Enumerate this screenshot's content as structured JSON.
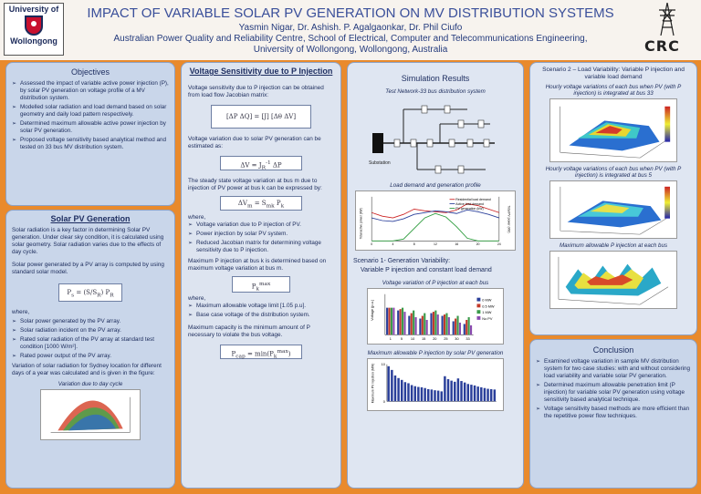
{
  "header": {
    "logo_left_top": "University of",
    "logo_left_bottom": "Wollongong",
    "title": "IMPACT OF VARIABLE SOLAR PV GENERATION ON MV DISTRIBUTION SYSTEMS",
    "authors": "Yasmin Nigar, Dr. Ashish. P. Agalgaonkar,  Dr. Phil Ciufo",
    "affiliation_1": "Australian Power Quality and Reliability Centre, School of Electrical, Computer and Telecommunications Engineering,",
    "affiliation_2": "University of Wollongong, Wollongong,  Australia",
    "logo_right": "CRC"
  },
  "objectives": {
    "title": "Objectives",
    "items": [
      "Assessed the impact of variable active power injection (P), by solar PV generation on voltage profile of a MV distribution system.",
      "Modelled solar radiation and load demand based on solar geometry and daily load pattern respectively.",
      "Determined maximum allowable active power injection by solar PV generation.",
      "Proposed voltage sensitivity based analytical method and tested on 33 bus MV distribution system."
    ]
  },
  "solar": {
    "title": "Solar PV Generation",
    "intro": "Solar radiation is a key factor in determining Solar PV generation. Under clear sky condition, it is calculated using solar geometry. Solar radiation varies due to the effects of day cycle.",
    "power_intro": "Solar power generated by a PV array is computed by using standard solar model.",
    "where": "where,",
    "defs": [
      "Solar power generated by the PV array.",
      "Solar radiation incident on the PV array.",
      "Rated solar radiation of the PV array at standard test condition [1000 W/m²].",
      "Rated power output of the PV array."
    ],
    "variation": "Variation of solar radiation for Sydney location for different days of a year was calculated and is given in the figure:",
    "figure_title": "Variation due to day cycle"
  },
  "sensitivity": {
    "title": "Voltage Sensitivity due to P Injection",
    "p1": "Voltage sensitivity due to P injection can be obtained from load flow Jacobian matrix:",
    "p2": "Voltage variation due to solar PV generation can be estimated as:",
    "p3": "The steady state voltage variation at bus m due to injection of PV power at bus k can be expressed by:",
    "where1": "where,",
    "d1": "Voltage variation due to P injection of PV.",
    "d2": "Power injection by solar PV system.",
    "d3": "Reduced Jacobian matrix for determining voltage sensitivity due to P injection.",
    "p4": "Maximum P injection at bus k is determined based on maximum voltage variation at bus m.",
    "where2": "where,",
    "d4": "Maximum allowable voltage limit [1.05 p.u].",
    "d5": "Base case voltage of the distribution system.",
    "p5": "Maximum capacity is the minimum amount of P necessary to violate the bus voltage."
  },
  "simulation": {
    "title": "Simulation Results",
    "network_title": "Test Network-33 bus distribution system",
    "substation": "Substation",
    "load_title": "Load demand and generation profile",
    "load_legend": [
      "Residential load demand",
      "Active load demand",
      "PV generation (kW)"
    ],
    "load_ylabel_left": "Total active power (kW)",
    "load_ylabel_right": "Total PV power (kW)",
    "scenario1_title": "Scenario 1- Generation Variability:",
    "scenario1_desc": "Variable P injection and constant load demand",
    "bar_title": "Voltage variation of P injection at each bus",
    "bar_legend": [
      "0 MW",
      "0.5 MW",
      "1 MW",
      "No PV"
    ],
    "bar_ylabel": "Voltage (p.u.)",
    "bar_xlabel": "Bus",
    "max_title": "Maximum allowable P injection by solar PV generation",
    "max_ylabel": "Maximum PV injection (MW)"
  },
  "scenario2": {
    "title": "Scenario 2 – Load Variability: Variable P injection and variable load demand",
    "fig1": "Hourly voltage variations of each bus when PV (with P injection) is integrated at bus 33",
    "fig2": "Hourly voltage variations of each bus when PV (with P injection) is integrated at bus 5",
    "fig3": "Maximum allowable P injection at each bus",
    "axis_bus": "Bus No.",
    "axis_hours": "Hours",
    "axis_voltage": "Voltage (p.u.)"
  },
  "conclusion": {
    "title": "Conclusion",
    "items": [
      "Examined voltage variation in sample MV distribution system for two case studies: with and without considering load variability and variable solar PV generation.",
      "Determined maximum allowable penetration limit (P injection) for variable solar PV generation using voltage sensitivity based analytical technique.",
      "Voltage sensitivity based methods are more efficient than the repetitive power flow techniques."
    ]
  },
  "chart_data": [
    {
      "type": "bar",
      "title": "Voltage variation of P injection at each bus",
      "categories": [
        "1",
        "5",
        "10",
        "15",
        "20",
        "25",
        "30",
        "33"
      ],
      "series": [
        {
          "name": "0 MW",
          "values": [
            1.0,
            0.99,
            0.97,
            0.96,
            0.98,
            0.97,
            0.95,
            0.94
          ]
        },
        {
          "name": "0.5 MW",
          "values": [
            1.0,
            0.995,
            0.98,
            0.97,
            0.985,
            0.975,
            0.96,
            0.955
          ]
        },
        {
          "name": "1 MW",
          "values": [
            1.0,
            1.0,
            0.99,
            0.98,
            0.99,
            0.98,
            0.97,
            0.965
          ]
        },
        {
          "name": "No PV",
          "values": [
            1.0,
            0.985,
            0.965,
            0.955,
            0.975,
            0.965,
            0.945,
            0.935
          ]
        }
      ],
      "colors": [
        "#2a3f9a",
        "#c23a2a",
        "#3a9a4a",
        "#8a4ab0"
      ],
      "ylim": [
        0.9,
        1.05
      ]
    },
    {
      "type": "bar",
      "title": "Maximum allowable P injection by solar PV generation",
      "categories": [
        "1",
        "2",
        "3",
        "4",
        "5",
        "6",
        "7",
        "8",
        "9",
        "10",
        "11",
        "12",
        "13",
        "14",
        "15",
        "16",
        "17",
        "18",
        "19",
        "20",
        "21",
        "22",
        "23",
        "24",
        "25",
        "26",
        "27",
        "28",
        "29",
        "30",
        "31",
        "32",
        "33"
      ],
      "values": [
        9.5,
        8.5,
        7.0,
        6.3,
        5.8,
        5.2,
        4.9,
        4.4,
        4.1,
        3.9,
        3.8,
        3.6,
        3.3,
        3.2,
        3.0,
        2.9,
        2.7,
        6.8,
        6.0,
        5.6,
        5.3,
        6.2,
        5.5,
        5.1,
        4.7,
        4.5,
        4.3,
        4.0,
        3.8,
        3.6,
        3.4,
        3.3,
        3.2
      ],
      "ylim": [
        0,
        10
      ]
    },
    {
      "type": "line",
      "title": "Load demand and generation profile",
      "x": [
        0,
        2,
        4,
        6,
        8,
        10,
        12,
        14,
        16,
        18,
        20,
        22,
        24
      ],
      "series": [
        {
          "name": "Residential load demand",
          "values": [
            3.2,
            2.8,
            2.6,
            3.0,
            3.6,
            3.4,
            3.3,
            3.2,
            3.5,
            4.2,
            4.0,
            3.6,
            3.2
          ]
        },
        {
          "name": "Active load demand",
          "values": [
            2.6,
            2.3,
            2.2,
            2.5,
            3.0,
            3.2,
            3.4,
            3.3,
            3.1,
            3.5,
            3.3,
            3.0,
            2.6
          ]
        },
        {
          "name": "PV generation (kW)",
          "values": [
            0,
            0,
            0,
            0.2,
            1.4,
            2.6,
            3.1,
            2.7,
            1.6,
            0.3,
            0,
            0,
            0
          ]
        }
      ],
      "ylim": [
        0,
        5
      ]
    }
  ]
}
